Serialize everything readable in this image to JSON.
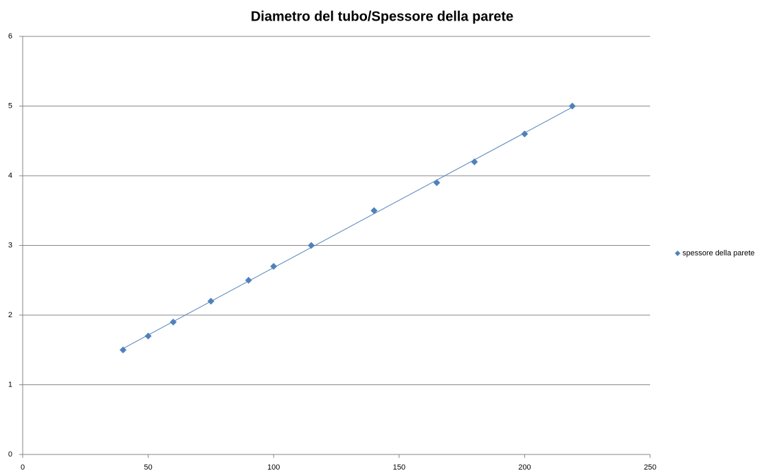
{
  "chart_data": {
    "type": "scatter",
    "title": "Diametro del tubo/Spessore della parete",
    "series": [
      {
        "name": "spessore della parete",
        "color": "#4f81bd",
        "x": [
          40,
          50,
          60,
          75,
          90,
          100,
          115,
          140,
          165,
          180,
          200,
          219
        ],
        "values": [
          1.5,
          1.7,
          1.9,
          2.2,
          2.5,
          2.7,
          3.0,
          3.5,
          3.9,
          4.2,
          4.6,
          5.0
        ]
      }
    ],
    "trendline": "linear",
    "xlim": [
      0,
      250
    ],
    "xticks": [
      0,
      50,
      100,
      150,
      200,
      250
    ],
    "ylim": [
      0,
      6
    ],
    "yticks": [
      0,
      1,
      2,
      3,
      4,
      5,
      6
    ],
    "grid": true,
    "legend": "right"
  }
}
